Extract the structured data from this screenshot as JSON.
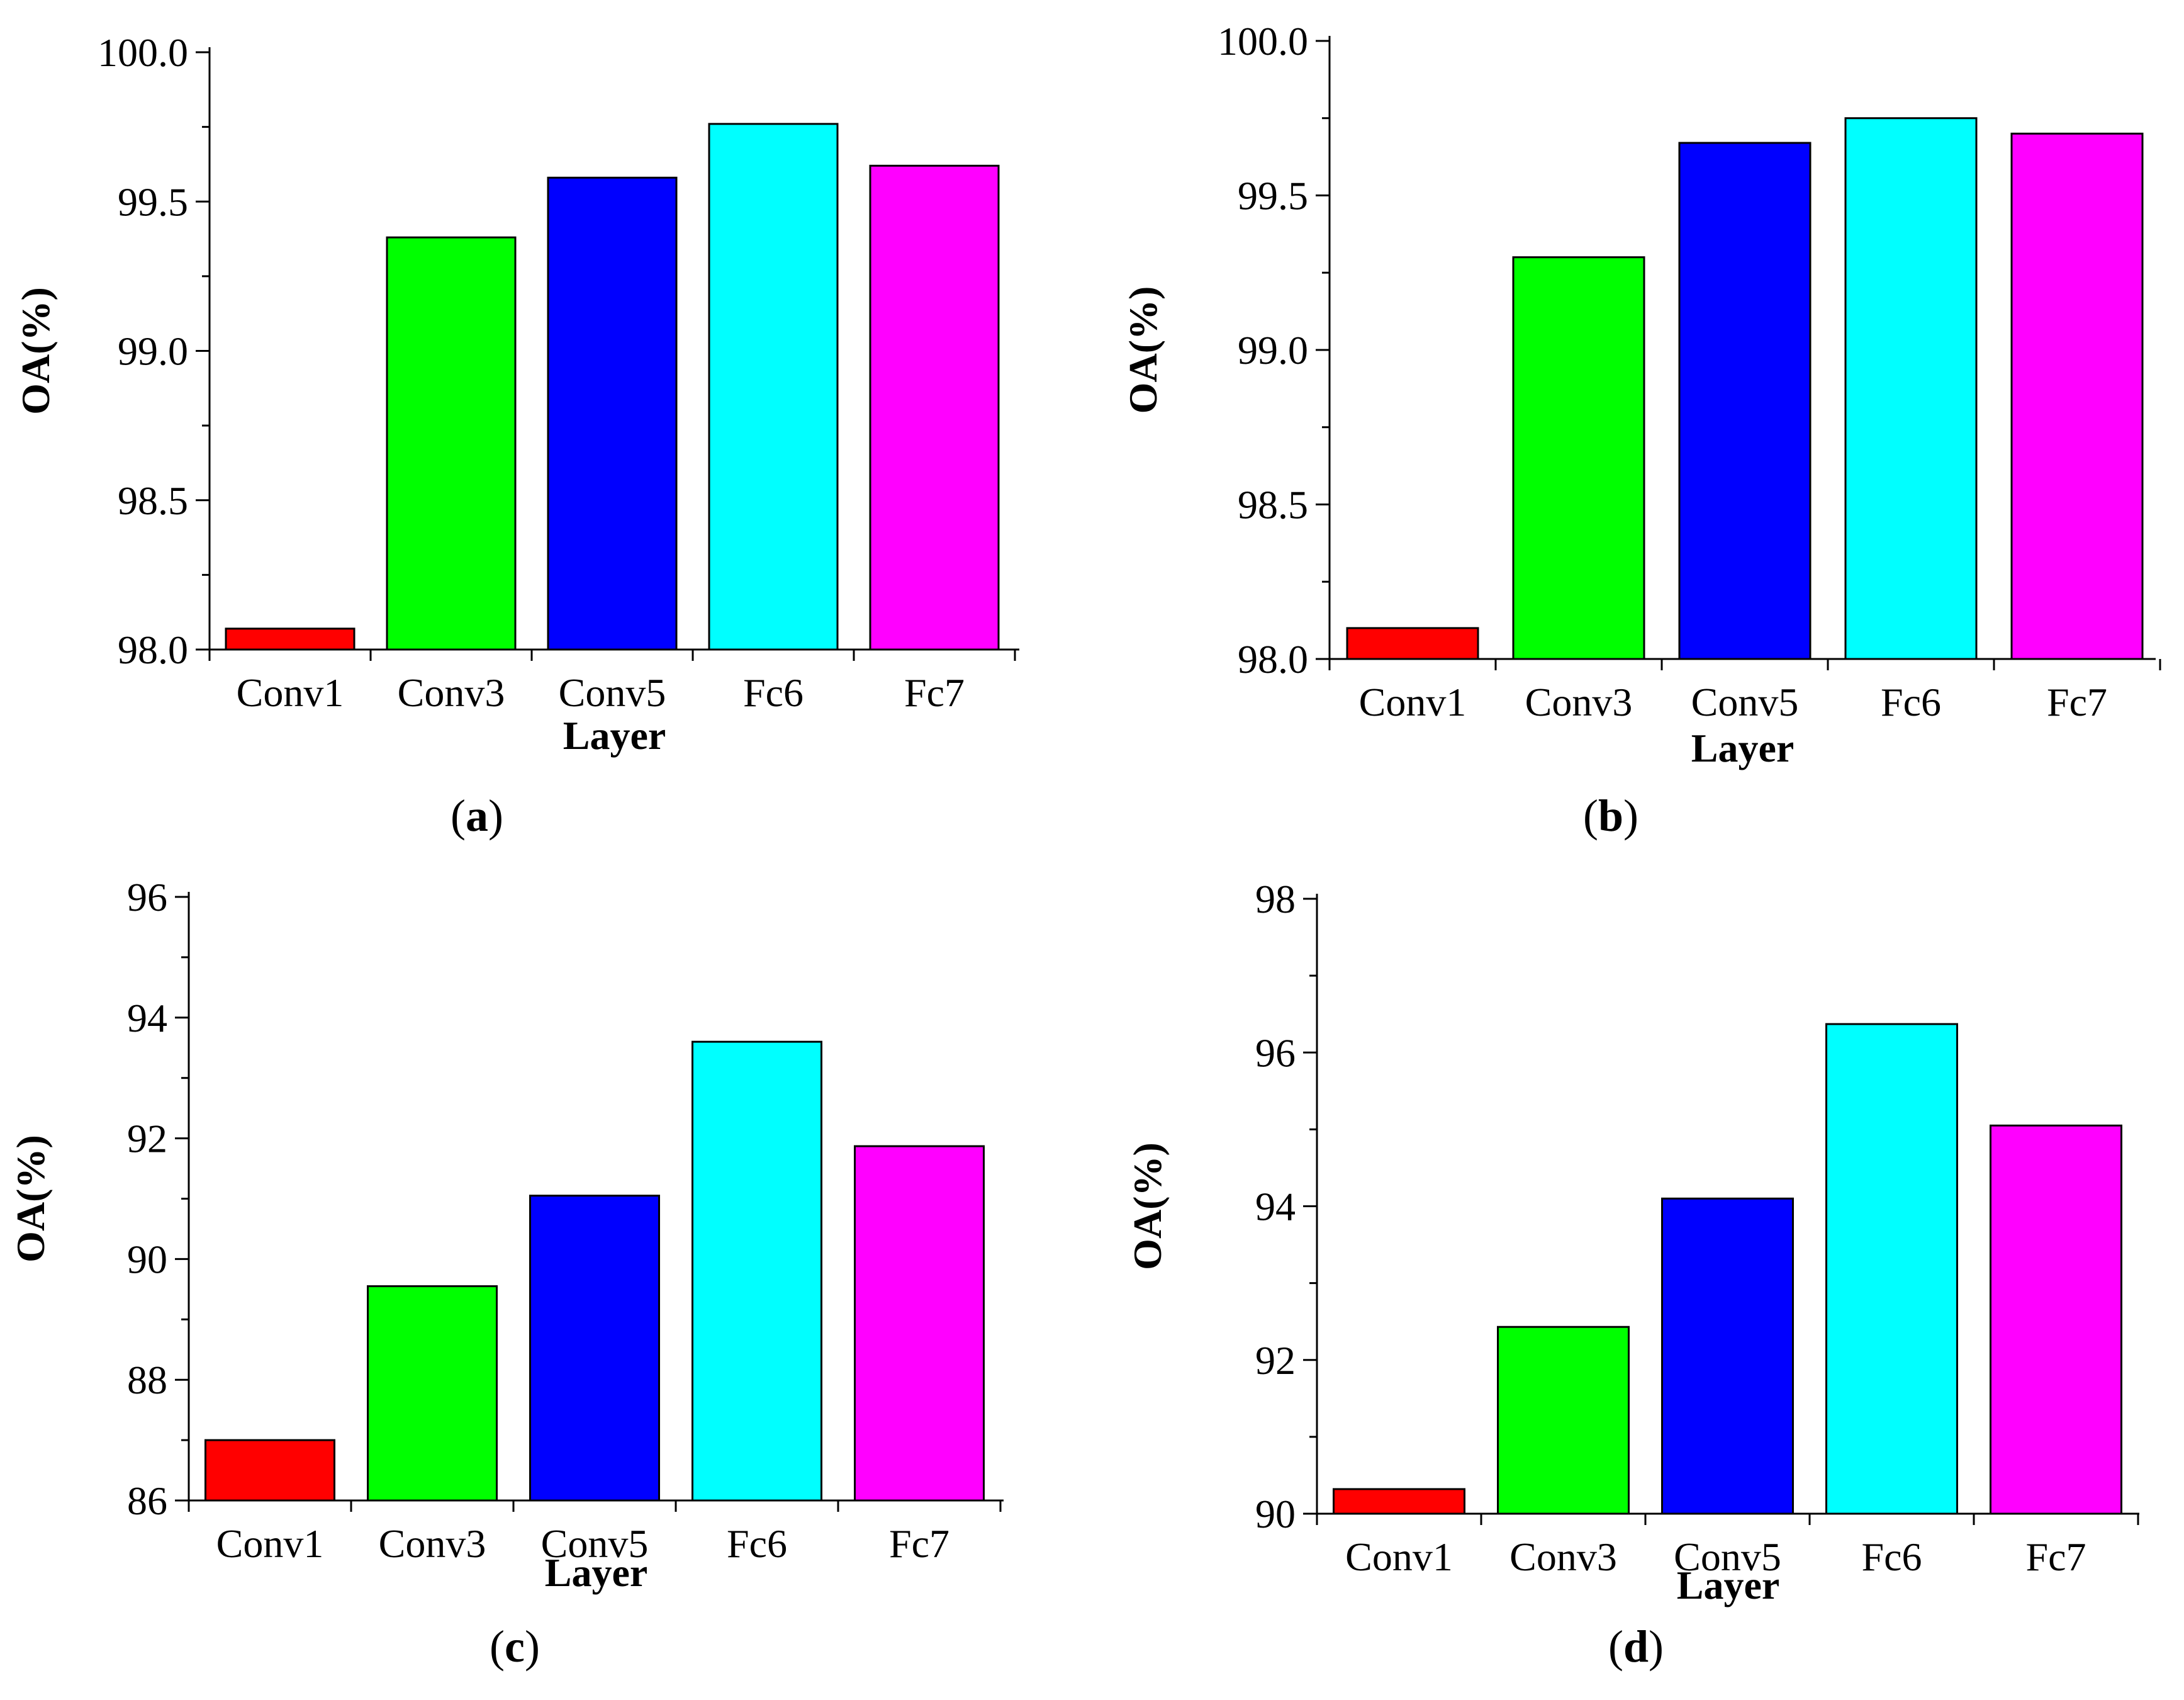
{
  "figure": {
    "panels": [
      {
        "id": "a",
        "caption_letter": "a"
      },
      {
        "id": "b",
        "caption_letter": "b"
      },
      {
        "id": "c",
        "caption_letter": "c"
      },
      {
        "id": "d",
        "caption_letter": "d"
      }
    ]
  },
  "colors": {
    "Conv1": "#ff0000",
    "Conv3": "#00ff00",
    "Conv5": "#0000ff",
    "Fc6": "#00ffff",
    "Fc7": "#ff00ff"
  },
  "chart_data": [
    {
      "type": "bar",
      "panel": "a",
      "categories": [
        "Conv1",
        "Conv3",
        "Conv5",
        "Fc6",
        "Fc7"
      ],
      "values": [
        98.07,
        99.38,
        99.58,
        99.76,
        99.62
      ],
      "xlabel": "Layer",
      "ylabel": "OA(%)",
      "ylim": [
        98.0,
        100.0
      ],
      "yticks": [
        "98.0",
        "98.5",
        "99.0",
        "99.5",
        "100.0"
      ],
      "grid": false
    },
    {
      "type": "bar",
      "panel": "b",
      "categories": [
        "Conv1",
        "Conv3",
        "Conv5",
        "Fc6",
        "Fc7"
      ],
      "values": [
        98.1,
        99.3,
        99.67,
        99.75,
        99.7
      ],
      "xlabel": "Layer",
      "ylabel": "OA(%)",
      "ylim": [
        98.0,
        100.0
      ],
      "yticks": [
        "98.0",
        "98.5",
        "99.0",
        "99.5",
        "100.0"
      ],
      "grid": false
    },
    {
      "type": "bar",
      "panel": "c",
      "categories": [
        "Conv1",
        "Conv3",
        "Conv5",
        "Fc6",
        "Fc7"
      ],
      "values": [
        87.0,
        89.55,
        91.05,
        93.6,
        91.87
      ],
      "xlabel": "Layer",
      "ylabel": "OA(%)",
      "ylim": [
        86,
        96
      ],
      "yticks": [
        "86",
        "88",
        "90",
        "92",
        "94",
        "96"
      ],
      "grid": false
    },
    {
      "type": "bar",
      "panel": "d",
      "categories": [
        "Conv1",
        "Conv3",
        "Conv5",
        "Fc6",
        "Fc7"
      ],
      "values": [
        90.32,
        92.43,
        94.1,
        96.37,
        95.05
      ],
      "xlabel": "Layer",
      "ylabel": "OA(%)",
      "ylim": [
        90,
        98
      ],
      "yticks": [
        "90",
        "92",
        "94",
        "96",
        "98"
      ],
      "grid": false
    }
  ]
}
